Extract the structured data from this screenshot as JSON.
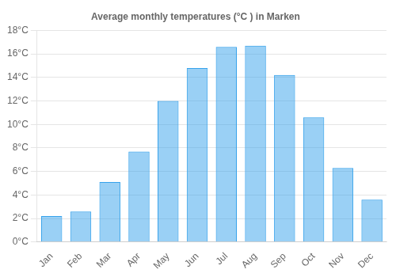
{
  "chart_data": {
    "type": "bar",
    "title": "Average monthly temperatures (°C ) in Marken",
    "categories": [
      "Jan",
      "Feb",
      "Mar",
      "Apr",
      "May",
      "Jun",
      "Jul",
      "Aug",
      "Sep",
      "Oct",
      "Nov",
      "Dec"
    ],
    "values": [
      2.2,
      2.6,
      5.1,
      7.7,
      12.0,
      14.8,
      16.6,
      16.7,
      14.2,
      10.6,
      6.3,
      3.6
    ],
    "ylim": [
      0,
      18
    ],
    "yticks": [
      {
        "value": 0,
        "label": "0°C"
      },
      {
        "value": 2,
        "label": "2°C"
      },
      {
        "value": 4,
        "label": "4°C"
      },
      {
        "value": 6,
        "label": "6°C"
      },
      {
        "value": 8,
        "label": "8°C"
      },
      {
        "value": 10,
        "label": "10°C"
      },
      {
        "value": 12,
        "label": "12°C"
      },
      {
        "value": 14,
        "label": "14°C"
      },
      {
        "value": 16,
        "label": "16°C"
      },
      {
        "value": 18,
        "label": "18°C"
      }
    ],
    "grid": true
  }
}
